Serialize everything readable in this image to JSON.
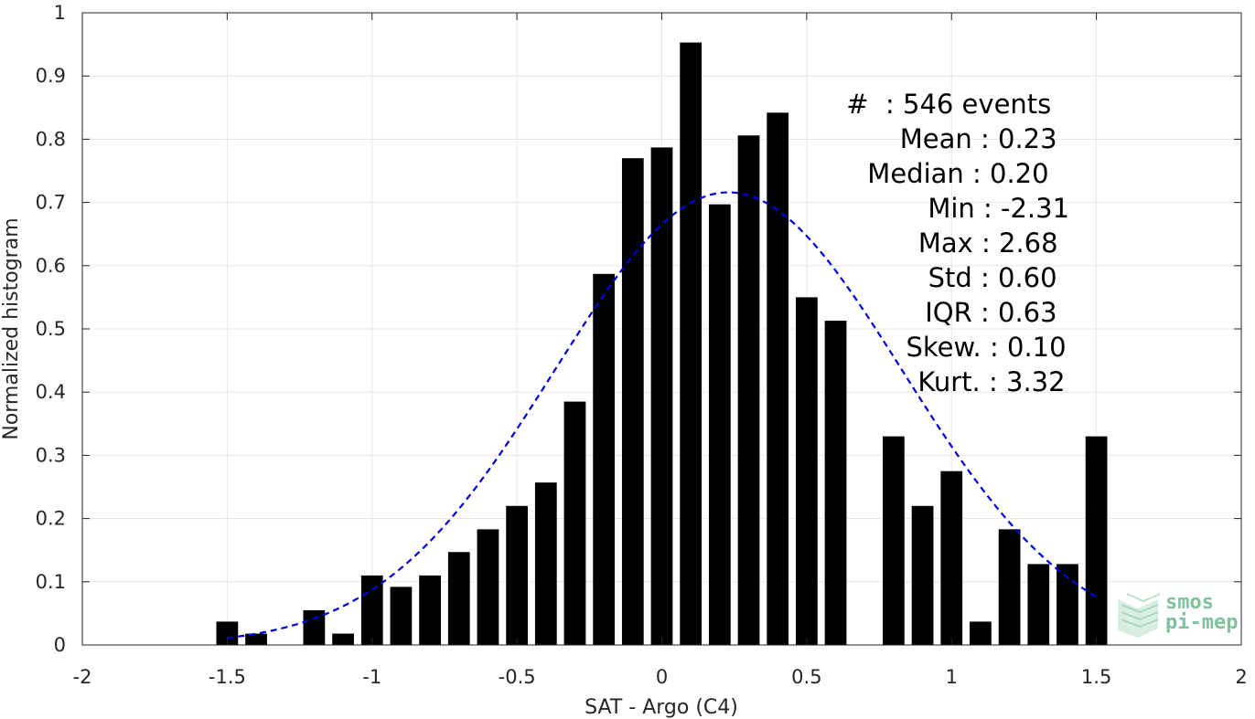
{
  "chart_data": {
    "type": "bar",
    "title": "",
    "xlabel": "SAT - Argo (C4)",
    "ylabel": "Normalized histogram",
    "xlim": [
      -2,
      2
    ],
    "ylim": [
      0,
      1
    ],
    "xticks": [
      "-2",
      "-1.5",
      "-1",
      "-0.5",
      "0",
      "0.5",
      "1",
      "1.5",
      "2"
    ],
    "yticks": [
      "0",
      "0.1",
      "0.2",
      "0.3",
      "0.4",
      "0.5",
      "0.6",
      "0.7",
      "0.8",
      "0.9",
      "1"
    ],
    "grid": true,
    "bar_color": "#000000",
    "bar_width": 0.075,
    "x": [
      -1.5,
      -1.4,
      -1.2,
      -1.1,
      -1.0,
      -0.9,
      -0.8,
      -0.7,
      -0.6,
      -0.5,
      -0.4,
      -0.3,
      -0.2,
      -0.1,
      0.0,
      0.1,
      0.2,
      0.3,
      0.4,
      0.5,
      0.6,
      0.7,
      0.8,
      0.9,
      1.0,
      1.1,
      1.2,
      1.3,
      1.4,
      1.5
    ],
    "values": [
      0.037,
      0.018,
      0.055,
      0.018,
      0.11,
      0.092,
      0.11,
      0.147,
      0.183,
      0.22,
      0.257,
      0.385,
      0.587,
      0.77,
      0.787,
      0.953,
      0.697,
      0.806,
      0.842,
      0.55,
      0.513,
      0.0,
      0.33,
      0.22,
      0.275,
      0.037,
      0.183,
      0.128,
      0.128,
      0.33
    ],
    "fit_curve": {
      "style": "dashed",
      "color": "#0000dd",
      "mean": 0.23,
      "std": 0.6,
      "peak": 0.716,
      "x_range": [
        -1.5,
        1.5
      ]
    }
  },
  "stats": {
    "lines": [
      {
        "label": "#  ",
        "value": ": 546 events"
      },
      {
        "label": "Mean ",
        "value": ": 0.23"
      },
      {
        "label": "Median ",
        "value": ": 0.20"
      },
      {
        "label": "Min ",
        "value": ": -2.31"
      },
      {
        "label": "Max ",
        "value": ": 2.68"
      },
      {
        "label": "Std ",
        "value": ": 0.60"
      },
      {
        "label": "IQR ",
        "value": ": 0.63"
      },
      {
        "label": "Skew. ",
        "value": ": 0.10"
      },
      {
        "label": "Kurt. ",
        "value": ": 3.32"
      }
    ]
  },
  "logo": {
    "line1": "smos",
    "line2": "pi-mep",
    "color": "#7fc29b"
  }
}
